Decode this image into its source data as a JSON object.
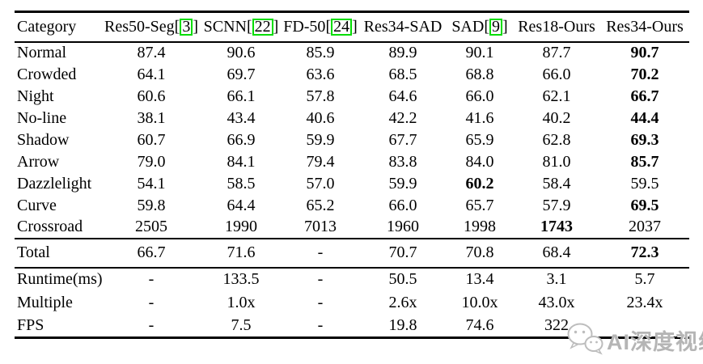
{
  "colors": {
    "citation_box": "#00dd00",
    "text": "#000000",
    "watermark": "#b5b5b5",
    "background": "#ffffff"
  },
  "header": {
    "columns": [
      {
        "label": "Category",
        "citation": null
      },
      {
        "label": "Res50-Seg",
        "citation": "3"
      },
      {
        "label": "SCNN",
        "citation": "22"
      },
      {
        "label": "FD-50",
        "citation": "24"
      },
      {
        "label": "Res34-SAD",
        "citation": null
      },
      {
        "label": "SAD",
        "citation": "9"
      },
      {
        "label": "Res18-Ours",
        "citation": null
      },
      {
        "label": "Res34-Ours",
        "citation": null
      }
    ]
  },
  "body": {
    "category_rows": [
      {
        "label": "Normal",
        "values": [
          "87.4",
          "90.6",
          "85.9",
          "89.9",
          "90.1",
          "87.7",
          "90.7"
        ],
        "bold_index": 6
      },
      {
        "label": "Crowded",
        "values": [
          "64.1",
          "69.7",
          "63.6",
          "68.5",
          "68.8",
          "66.0",
          "70.2"
        ],
        "bold_index": 6
      },
      {
        "label": "Night",
        "values": [
          "60.6",
          "66.1",
          "57.8",
          "64.6",
          "66.0",
          "62.1",
          "66.7"
        ],
        "bold_index": 6
      },
      {
        "label": "No-line",
        "values": [
          "38.1",
          "43.4",
          "40.6",
          "42.2",
          "41.6",
          "40.2",
          "44.4"
        ],
        "bold_index": 6
      },
      {
        "label": "Shadow",
        "values": [
          "60.7",
          "66.9",
          "59.9",
          "67.7",
          "65.9",
          "62.8",
          "69.3"
        ],
        "bold_index": 6
      },
      {
        "label": "Arrow",
        "values": [
          "79.0",
          "84.1",
          "79.4",
          "83.8",
          "84.0",
          "81.0",
          "85.7"
        ],
        "bold_index": 6
      },
      {
        "label": "Dazzlelight",
        "values": [
          "54.1",
          "58.5",
          "57.0",
          "59.9",
          "60.2",
          "58.4",
          "59.5"
        ],
        "bold_index": 4
      },
      {
        "label": "Curve",
        "values": [
          "59.8",
          "64.4",
          "65.2",
          "66.0",
          "65.7",
          "57.9",
          "69.5"
        ],
        "bold_index": 6
      },
      {
        "label": "Crossroad",
        "values": [
          "2505",
          "1990",
          "7013",
          "1960",
          "1998",
          "1743",
          "2037"
        ],
        "bold_index": 5
      }
    ],
    "total_row": {
      "label": "Total",
      "values": [
        "66.7",
        "71.6",
        "-",
        "70.7",
        "70.8",
        "68.4",
        "72.3"
      ],
      "bold_index": 6
    },
    "perf_rows": [
      {
        "label": "Runtime(ms)",
        "values": [
          "-",
          "133.5",
          "-",
          "50.5",
          "13.4",
          "3.1",
          "5.7"
        ],
        "bold_index": null
      },
      {
        "label": "Multiple",
        "values": [
          "-",
          "1.0x",
          "-",
          "2.6x",
          "10.0x",
          "43.0x",
          "23.4x"
        ],
        "bold_index": null
      },
      {
        "label": "FPS",
        "values": [
          "-",
          "7.5",
          "-",
          "19.8",
          "74.6",
          "322",
          ""
        ],
        "bold_index": null
      }
    ]
  },
  "watermark": {
    "text": "AI深度视线",
    "logo": "wechat-bubbles-icon"
  }
}
